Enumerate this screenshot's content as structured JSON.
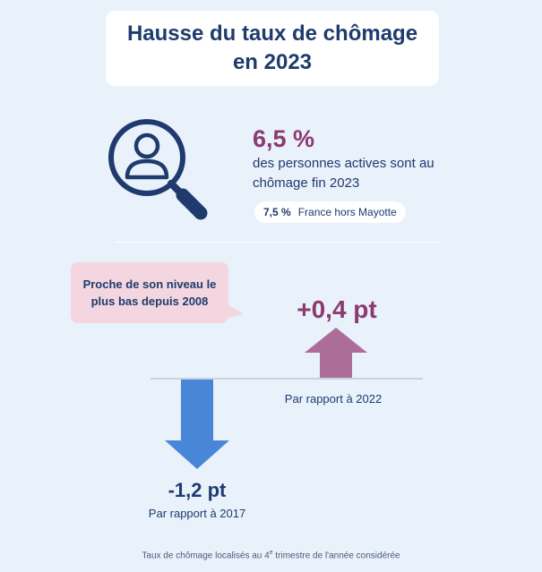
{
  "title": "Hausse du taux de chômage en 2023",
  "headline": {
    "value": "6,5 %",
    "description": "des personnes actives sont au chômage fin 2023",
    "secondary_value": "7,5 %",
    "secondary_label": "France hors Mayotte"
  },
  "callout": {
    "text": "Proche de son niveau le plus bas depuis 2008"
  },
  "change_2022": {
    "value": "+0,4 pt",
    "label": "Par rapport à 2022"
  },
  "change_2017": {
    "value": "-1,2 pt",
    "label": "Par rapport à 2017"
  },
  "footnote": {
    "before": "Taux de chômage localisés au 4",
    "superscript": "e",
    "after": " trimestre de l'année considérée"
  },
  "colors": {
    "navy": "#1f3b6e",
    "plum": "#8b3a72",
    "blue_arrow": "#4a86d8",
    "mauve_arrow": "#ac6d99",
    "pink_bubble": "#f3d6df",
    "background": "#e9f1fb"
  }
}
